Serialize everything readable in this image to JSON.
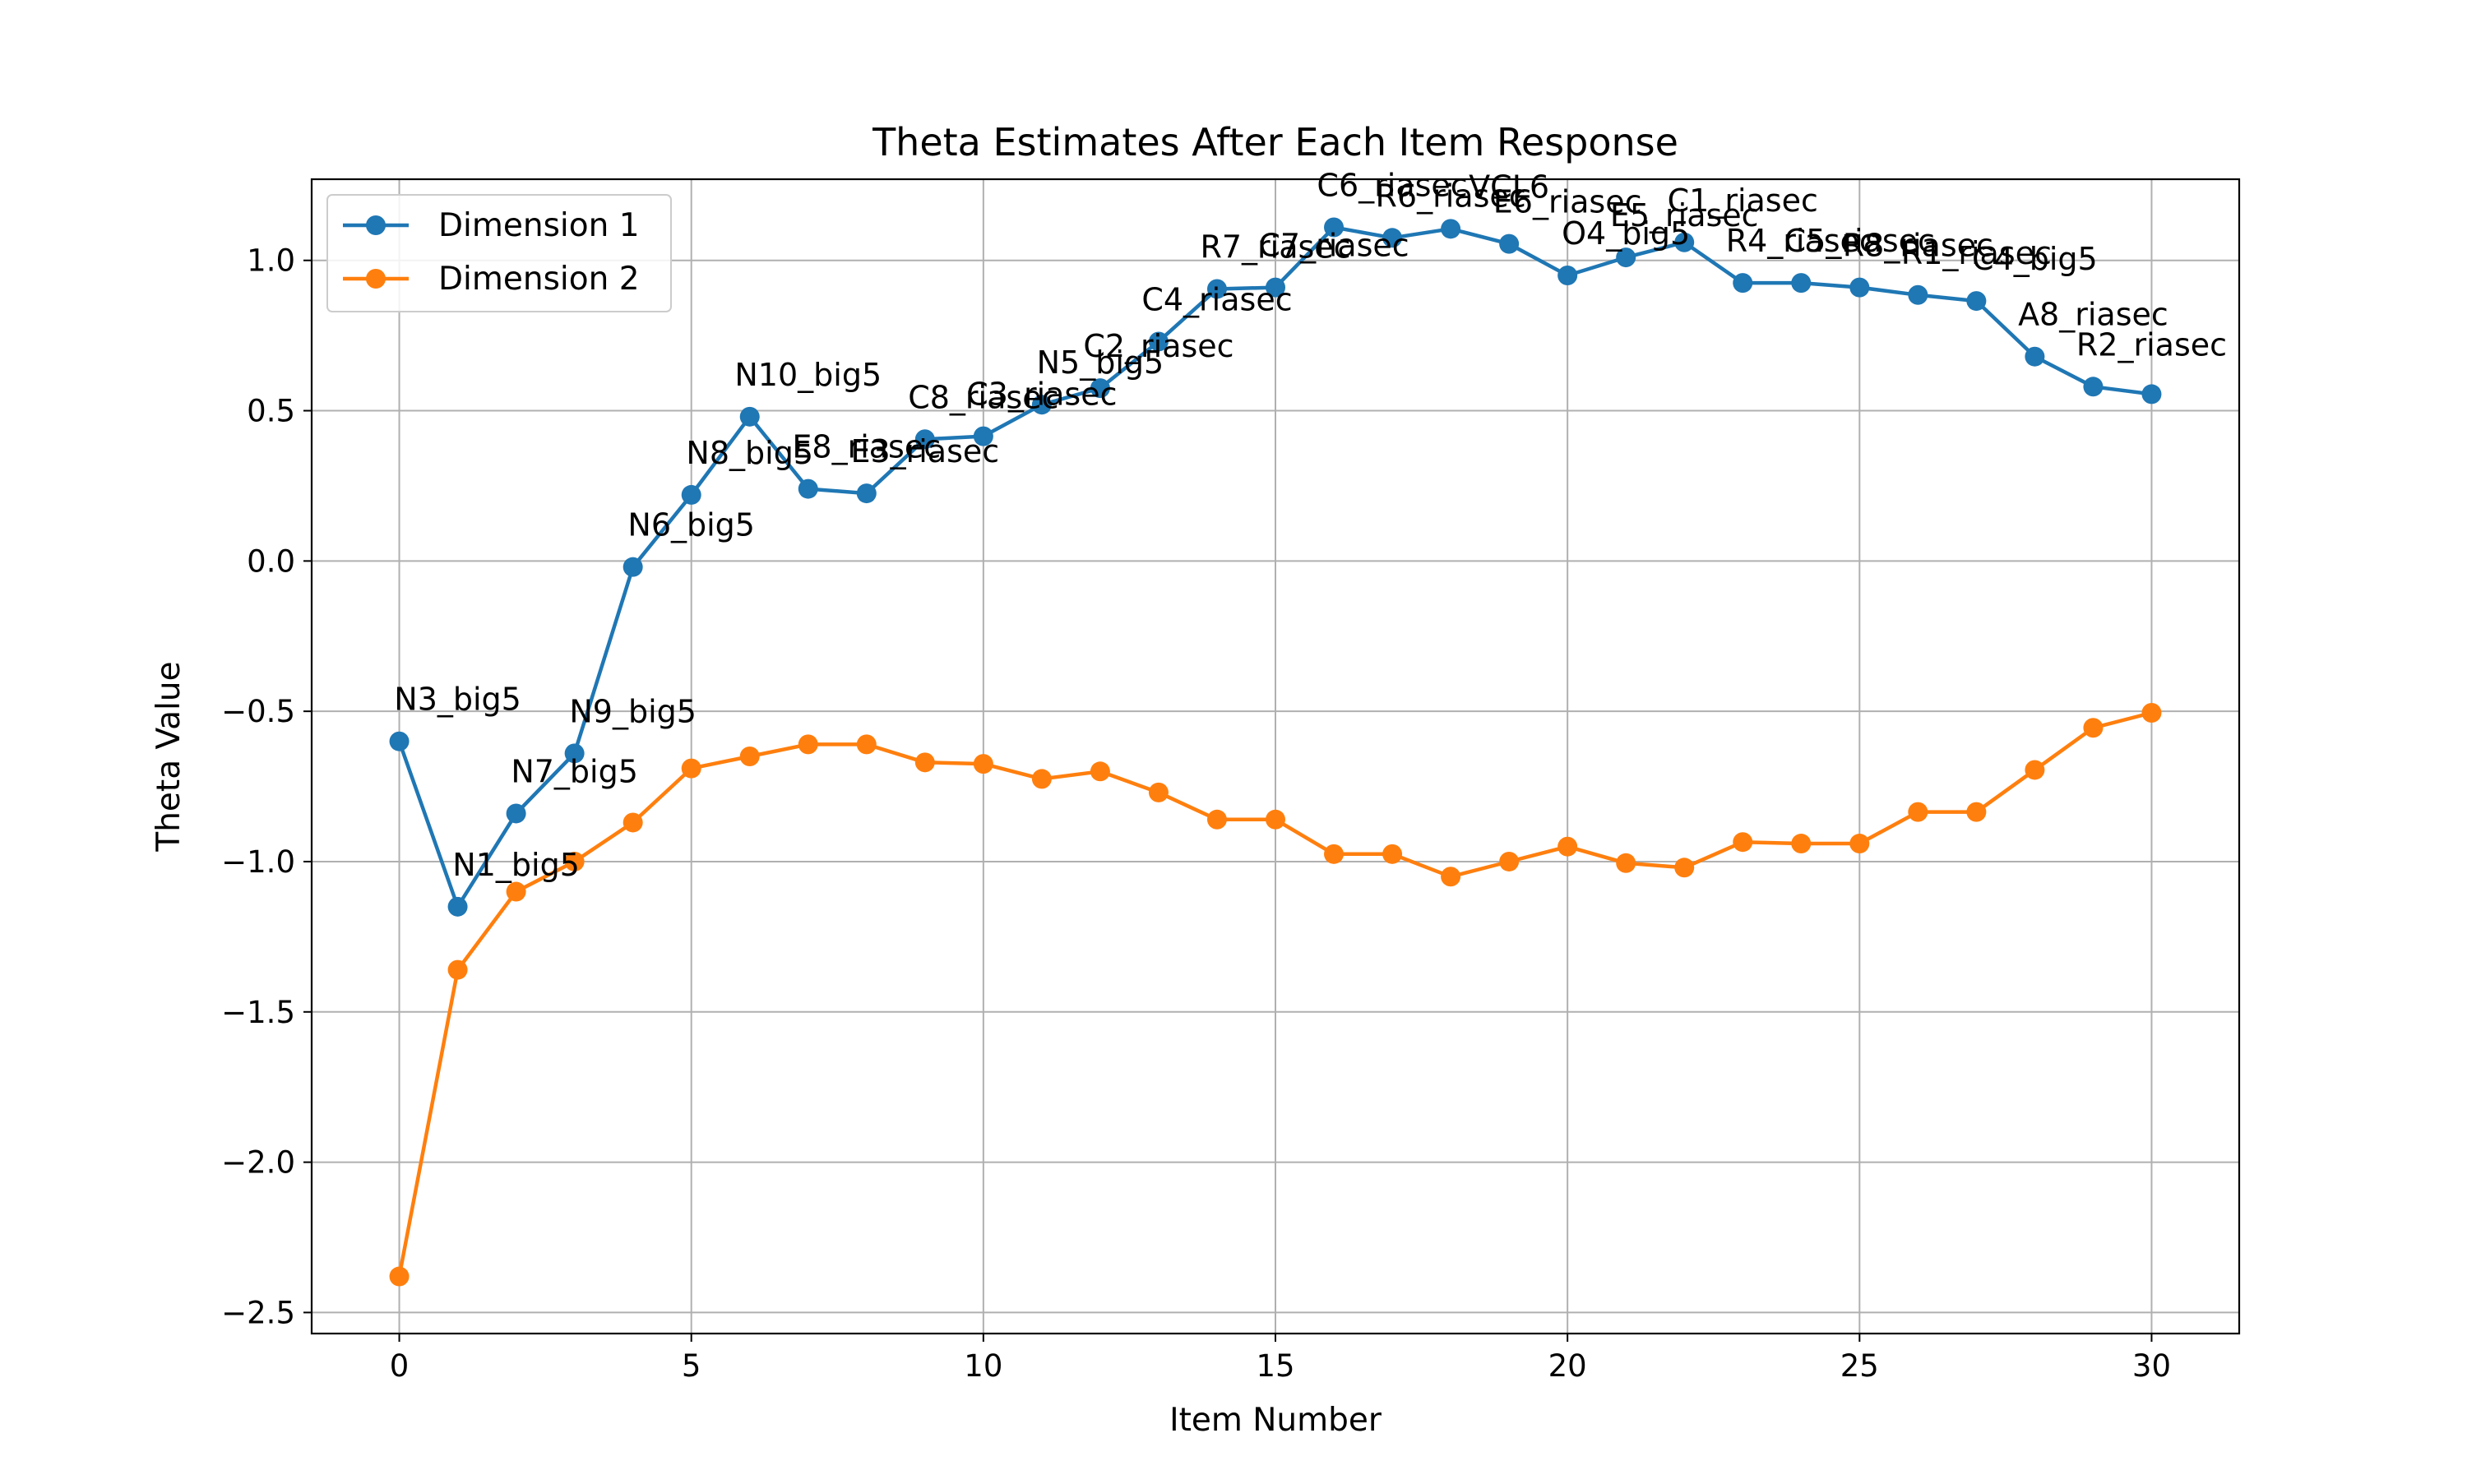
{
  "chart_data": {
    "type": "line",
    "title": "Theta Estimates After Each Item Response",
    "xlabel": "Item Number",
    "ylabel": "Theta Value",
    "xlim": [
      -1.5,
      31.5
    ],
    "ylim": [
      -2.57,
      1.27
    ],
    "xticks": [
      0,
      5,
      10,
      15,
      20,
      25,
      30
    ],
    "xtick_labels": [
      "0",
      "5",
      "10",
      "15",
      "20",
      "25",
      "30"
    ],
    "yticks": [
      -2.5,
      -2.0,
      -1.5,
      -1.0,
      -0.5,
      0.0,
      0.5,
      1.0
    ],
    "ytick_labels": [
      "−2.5",
      "−2.0",
      "−1.5",
      "−1.0",
      "−0.5",
      "0.0",
      "0.5",
      "1.0"
    ],
    "grid": true,
    "legend_position": "top-left",
    "x": [
      0,
      1,
      2,
      3,
      4,
      5,
      6,
      7,
      8,
      9,
      10,
      11,
      12,
      13,
      14,
      15,
      16,
      17,
      18,
      19,
      20,
      21,
      22,
      23,
      24,
      25,
      26,
      27,
      28,
      29,
      30
    ],
    "series": [
      {
        "name": "Dimension 1",
        "color": "#1f77b4",
        "values": [
          -0.6,
          -1.15,
          -0.84,
          -0.64,
          -0.02,
          0.22,
          0.48,
          0.24,
          0.225,
          0.405,
          0.415,
          0.52,
          0.575,
          0.73,
          0.905,
          0.91,
          1.11,
          1.075,
          1.105,
          1.055,
          0.95,
          1.01,
          1.06,
          0.925,
          0.925,
          0.91,
          0.885,
          0.865,
          0.68,
          0.58,
          0.555
        ]
      },
      {
        "name": "Dimension 2",
        "color": "#ff7f0e",
        "values": [
          -2.38,
          -1.36,
          -1.1,
          -1.0,
          -0.87,
          -0.69,
          -0.65,
          -0.61,
          -0.61,
          -0.67,
          -0.675,
          -0.725,
          -0.7,
          -0.77,
          -0.86,
          -0.86,
          -0.975,
          -0.975,
          -1.05,
          -1.0,
          -0.95,
          -1.005,
          -1.02,
          -0.935,
          -0.94,
          -0.94,
          -0.835,
          -0.835,
          -0.695,
          -0.555,
          -0.505
        ]
      }
    ],
    "annotations": [
      "N3_big5",
      "N1_big5",
      "N7_big5",
      "N9_big5",
      "N6_big5",
      "N8_big5",
      "N10_big5",
      "E8_riasec",
      "E3_riasec",
      "C8_riasec",
      "C3_riasec",
      "N5_big5",
      "C2_riasec",
      "C4_riasec",
      "R7_riasec",
      "C7_riasec",
      "C6_riasec",
      "R6_riasec",
      "VCL6",
      "E6_riasec",
      "O4_big5",
      "E5_riasec",
      "C1_riasec",
      "R4_riasec",
      "C5_riasec",
      "R8_riasec",
      "R1_riasec",
      "C4_big5",
      "A8_riasec",
      "R2_riasec",
      ""
    ]
  }
}
